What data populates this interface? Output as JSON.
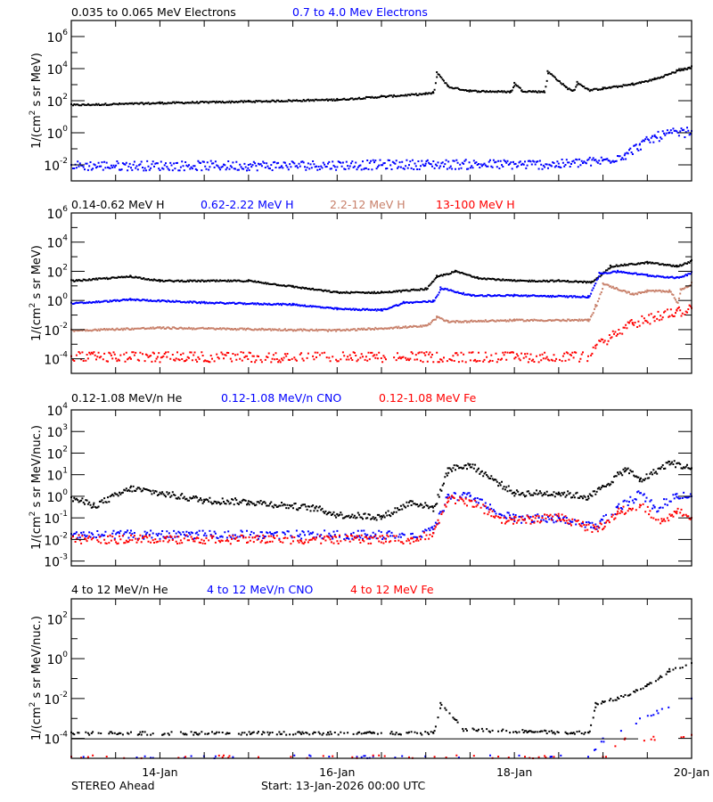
{
  "chart_data": [
    {
      "type": "scatter",
      "yscale": "log",
      "ylim": [
        0.001,
        10000000.0
      ],
      "yticks": [
        0.01,
        1,
        100.0,
        10000.0,
        1000000.0
      ],
      "xlim": [
        "2026-01-13T00:00",
        "2026-01-20T00:00"
      ],
      "ylabel": {
        "pre": "1/(cm",
        "sup": "2",
        "post": " s sr MeV)"
      },
      "series": [
        {
          "name": "0.035 to 0.065 MeV Electrons",
          "color": "#000000",
          "points": [
            [
              "2026-01-13T00:00",
              60
            ],
            [
              "2026-01-14T00:00",
              80
            ],
            [
              "2026-01-15T00:00",
              100
            ],
            [
              "2026-01-16T00:00",
              130
            ],
            [
              "2026-01-16T12:00",
              200
            ],
            [
              "2026-01-17T00:00",
              300
            ],
            [
              "2026-01-17T02:00",
              350
            ],
            [
              "2026-01-17T03:00",
              6000
            ],
            [
              "2026-01-17T06:00",
              800
            ],
            [
              "2026-01-17T12:00",
              450
            ],
            [
              "2026-01-17T23:00",
              400
            ],
            [
              "2026-01-18T00:00",
              1300
            ],
            [
              "2026-01-18T02:00",
              450
            ],
            [
              "2026-01-18T08:00",
              400
            ],
            [
              "2026-01-18T09:00",
              7000
            ],
            [
              "2026-01-18T14:00",
              700
            ],
            [
              "2026-01-18T16:00",
              450
            ],
            [
              "2026-01-18T17:00",
              1500
            ],
            [
              "2026-01-18T20:00",
              500
            ],
            [
              "2026-01-19T00:00",
              650
            ],
            [
              "2026-01-19T08:00",
              1200
            ],
            [
              "2026-01-19T14:00",
              2500
            ],
            [
              "2026-01-19T20:00",
              8000
            ],
            [
              "2026-01-20T00:00",
              14000
            ]
          ]
        },
        {
          "name": "0.7 to 4.0 Mev Electrons",
          "color": "#0000ff",
          "points": [
            [
              "2026-01-13T00:00",
              0.01
            ],
            [
              "2026-01-15T00:00",
              0.01
            ],
            [
              "2026-01-17T00:00",
              0.012
            ],
            [
              "2026-01-18T12:00",
              0.012
            ],
            [
              "2026-01-19T00:00",
              0.02
            ],
            [
              "2026-01-19T06:00",
              0.05
            ],
            [
              "2026-01-19T10:00",
              0.2
            ],
            [
              "2026-01-19T14:00",
              0.6
            ],
            [
              "2026-01-19T18:00",
              1.0
            ],
            [
              "2026-01-20T00:00",
              1.3
            ]
          ]
        }
      ]
    },
    {
      "type": "scatter",
      "yscale": "log",
      "ylim": [
        1e-05,
        1000000.0
      ],
      "yticks": [
        0.0001,
        0.01,
        1,
        100.0,
        10000.0,
        1000000.0
      ],
      "xlim": [
        "2026-01-13T00:00",
        "2026-01-20T00:00"
      ],
      "ylabel": {
        "pre": "1/(cm",
        "sup": "2",
        "post": " s sr MeV)"
      },
      "series": [
        {
          "name": "0.14-0.62 MeV H",
          "color": "#000000",
          "points": [
            [
              "2026-01-13T00:00",
              25
            ],
            [
              "2026-01-13T16:00",
              50
            ],
            [
              "2026-01-14T00:00",
              25
            ],
            [
              "2026-01-15T00:00",
              25
            ],
            [
              "2026-01-15T12:00",
              10
            ],
            [
              "2026-01-16T00:00",
              4
            ],
            [
              "2026-01-16T12:00",
              4
            ],
            [
              "2026-01-17T00:00",
              7
            ],
            [
              "2026-01-17T03:00",
              50
            ],
            [
              "2026-01-17T08:00",
              110
            ],
            [
              "2026-01-17T14:00",
              40
            ],
            [
              "2026-01-18T00:00",
              25
            ],
            [
              "2026-01-18T12:00",
              25
            ],
            [
              "2026-01-18T21:00",
              20
            ],
            [
              "2026-01-19T02:00",
              250
            ],
            [
              "2026-01-19T12:00",
              450
            ],
            [
              "2026-01-19T20:00",
              250
            ],
            [
              "2026-01-20T00:00",
              580
            ]
          ]
        },
        {
          "name": "0.62-2.22 MeV H",
          "color": "#0000ff",
          "points": [
            [
              "2026-01-13T00:00",
              0.7
            ],
            [
              "2026-01-13T16:00",
              1.3
            ],
            [
              "2026-01-14T12:00",
              0.8
            ],
            [
              "2026-01-15T12:00",
              0.6
            ],
            [
              "2026-01-16T00:00",
              0.3
            ],
            [
              "2026-01-16T12:00",
              0.25
            ],
            [
              "2026-01-16T18:00",
              0.8
            ],
            [
              "2026-01-17T02:00",
              1.0
            ],
            [
              "2026-01-17T04:00",
              8
            ],
            [
              "2026-01-17T12:00",
              2.5
            ],
            [
              "2026-01-18T00:00",
              2.5
            ],
            [
              "2026-01-18T20:00",
              2
            ],
            [
              "2026-01-18T23:00",
              80
            ],
            [
              "2026-01-19T04:00",
              110
            ],
            [
              "2026-01-19T12:00",
              60
            ],
            [
              "2026-01-19T20:00",
              40
            ],
            [
              "2026-01-20T00:00",
              90
            ]
          ]
        },
        {
          "name": "2.2-12 MeV H",
          "color": "#c8806a",
          "points": [
            [
              "2026-01-13T00:00",
              0.01
            ],
            [
              "2026-01-14T00:00",
              0.015
            ],
            [
              "2026-01-16T00:00",
              0.01
            ],
            [
              "2026-01-17T00:00",
              0.02
            ],
            [
              "2026-01-17T03:00",
              0.08
            ],
            [
              "2026-01-17T06:00",
              0.04
            ],
            [
              "2026-01-18T00:00",
              0.05
            ],
            [
              "2026-01-18T20:00",
              0.05
            ],
            [
              "2026-01-18T22:00",
              0.5
            ],
            [
              "2026-01-19T00:00",
              15
            ],
            [
              "2026-01-19T08:00",
              3
            ],
            [
              "2026-01-19T12:00",
              5
            ],
            [
              "2026-01-19T18:00",
              5
            ],
            [
              "2026-01-19T20:00",
              0.8
            ],
            [
              "2026-01-19T21:00",
              6
            ],
            [
              "2026-01-20T00:00",
              17
            ]
          ]
        },
        {
          "name": "13-100 MeV H",
          "color": "#ff0000",
          "points": [
            [
              "2026-01-13T00:00",
              0.00015
            ],
            [
              "2026-01-18T20:00",
              0.00015
            ],
            [
              "2026-01-18T22:00",
              0.0008
            ],
            [
              "2026-01-19T03:00",
              0.005
            ],
            [
              "2026-01-19T08:00",
              0.03
            ],
            [
              "2026-01-19T14:00",
              0.08
            ],
            [
              "2026-01-19T20:00",
              0.2
            ],
            [
              "2026-01-20T00:00",
              0.3
            ]
          ]
        }
      ]
    },
    {
      "type": "scatter",
      "yscale": "log",
      "ylim": [
        0.0006,
        10000.0
      ],
      "yticks": [
        0.001,
        0.01,
        0.1,
        1,
        10.0,
        100.0,
        1000.0,
        10000.0
      ],
      "xlim": [
        "2026-01-13T00:00",
        "2026-01-20T00:00"
      ],
      "ylabel": {
        "pre": "1/(cm",
        "sup": "2",
        "post": " s sr MeV/nuc.)"
      },
      "series": [
        {
          "name": "0.12-1.08 MeV/n He",
          "color": "#000000",
          "points": [
            [
              "2026-01-13T00:00",
              0.9
            ],
            [
              "2026-01-13T06:00",
              0.4
            ],
            [
              "2026-01-13T16:00",
              2.5
            ],
            [
              "2026-01-14T12:00",
              0.7
            ],
            [
              "2026-01-15T00:00",
              0.6
            ],
            [
              "2026-01-15T18:00",
              0.3
            ],
            [
              "2026-01-16T00:00",
              0.15
            ],
            [
              "2026-01-16T12:00",
              0.12
            ],
            [
              "2026-01-16T20:00",
              0.6
            ],
            [
              "2026-01-17T02:00",
              0.3
            ],
            [
              "2026-01-17T06:00",
              20
            ],
            [
              "2026-01-17T12:00",
              30
            ],
            [
              "2026-01-17T20:00",
              4
            ],
            [
              "2026-01-18T00:00",
              1.5
            ],
            [
              "2026-01-18T12:00",
              1.5
            ],
            [
              "2026-01-18T20:00",
              1
            ],
            [
              "2026-01-19T00:00",
              3
            ],
            [
              "2026-01-19T06:00",
              20
            ],
            [
              "2026-01-19T10:00",
              6
            ],
            [
              "2026-01-19T18:00",
              40
            ],
            [
              "2026-01-20T00:00",
              20
            ]
          ]
        },
        {
          "name": "0.12-1.08 MeV/n CNO",
          "color": "#0000ff",
          "points": [
            [
              "2026-01-13T00:00",
              0.018
            ],
            [
              "2026-01-16T20:00",
              0.018
            ],
            [
              "2026-01-17T02:00",
              0.03
            ],
            [
              "2026-01-17T06:00",
              1.2
            ],
            [
              "2026-01-17T12:00",
              1.0
            ],
            [
              "2026-01-17T20:00",
              0.15
            ],
            [
              "2026-01-18T00:00",
              0.1
            ],
            [
              "2026-01-18T12:00",
              0.1
            ],
            [
              "2026-01-18T22:00",
              0.05
            ],
            [
              "2026-01-19T04:00",
              0.3
            ],
            [
              "2026-01-19T10:00",
              1.4
            ],
            [
              "2026-01-19T14:00",
              0.3
            ],
            [
              "2026-01-19T20:00",
              1.3
            ],
            [
              "2026-01-20T00:00",
              1.0
            ]
          ]
        },
        {
          "name": "0.12-1.08 MeV Fe",
          "color": "#ff0000",
          "points": [
            [
              "2026-01-13T00:00",
              0.011
            ],
            [
              "2026-01-16T20:00",
              0.011
            ],
            [
              "2026-01-17T02:00",
              0.02
            ],
            [
              "2026-01-17T06:00",
              0.8
            ],
            [
              "2026-01-17T12:00",
              0.6
            ],
            [
              "2026-01-17T20:00",
              0.1
            ],
            [
              "2026-01-18T00:00",
              0.08
            ],
            [
              "2026-01-18T12:00",
              0.12
            ],
            [
              "2026-01-18T22:00",
              0.03
            ],
            [
              "2026-01-19T04:00",
              0.2
            ],
            [
              "2026-01-19T10:00",
              0.4
            ],
            [
              "2026-01-19T16:00",
              0.07
            ],
            [
              "2026-01-19T20:00",
              0.2
            ],
            [
              "2026-01-20T00:00",
              0.1
            ]
          ]
        }
      ]
    },
    {
      "type": "scatter",
      "yscale": "log",
      "ylim": [
        1e-05,
        1000.0
      ],
      "yticks": [
        0.0001,
        0.01,
        1,
        100.0
      ],
      "xlim": [
        "2026-01-13T00:00",
        "2026-01-20T00:00"
      ],
      "ylabel": {
        "pre": "1/(cm",
        "sup": "2",
        "post": " s sr MeV/nuc.)"
      },
      "x_tick_labels": [
        {
          "label": "14-Jan",
          "time": "2026-01-14T00:00"
        },
        {
          "label": "16-Jan",
          "time": "2026-01-16T00:00"
        },
        {
          "label": "18-Jan",
          "time": "2026-01-18T00:00"
        },
        {
          "label": "20-Jan",
          "time": "2026-01-20T00:00"
        }
      ],
      "series": [
        {
          "name": "4 to 12 MeV/n He",
          "color": "#000000",
          "points": [
            [
              "2026-01-13T00:00",
              0.0002
            ],
            [
              "2026-01-17T02:00",
              0.0002
            ],
            [
              "2026-01-17T04:00",
              0.006
            ],
            [
              "2026-01-17T10:00",
              0.0003
            ],
            [
              "2026-01-18T20:00",
              0.0002
            ],
            [
              "2026-01-18T22:00",
              0.006
            ],
            [
              "2026-01-19T06:00",
              0.015
            ],
            [
              "2026-01-19T12:00",
              0.05
            ],
            [
              "2026-01-19T18:00",
              0.3
            ],
            [
              "2026-01-20T00:00",
              0.6
            ]
          ]
        },
        {
          "name": "4 to 12 MeV/n CNO",
          "color": "#0000ff",
          "points": [
            [
              "2026-01-13T00:00",
              1.2e-05
            ],
            [
              "2026-01-18T20:00",
              1.2e-05
            ],
            [
              "2026-01-19T00:00",
              0.0001
            ],
            [
              "2026-01-19T10:00",
              0.001
            ],
            [
              "2026-01-19T16:00",
              0.003
            ],
            [
              "2026-01-20T00:00",
              0.01
            ]
          ]
        },
        {
          "name": "4 to 12 MeV Fe",
          "color": "#ff0000",
          "points": [
            [
              "2026-01-13T00:00",
              1.2e-05
            ],
            [
              "2026-01-19T00:00",
              1.2e-05
            ],
            [
              "2026-01-19T06:00",
              0.0001
            ],
            [
              "2026-01-20T00:00",
              0.00015
            ]
          ]
        }
      ]
    }
  ],
  "footer": {
    "spacecraft": "STEREO Ahead",
    "start": "Start: 13-Jan-2026 00:00 UTC"
  }
}
